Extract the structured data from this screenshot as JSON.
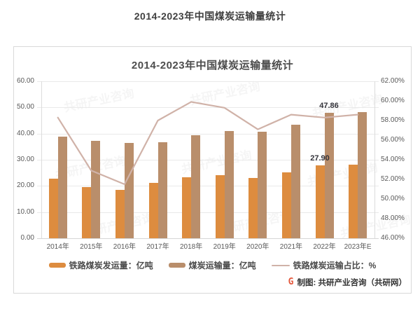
{
  "page": {
    "title": "2014-2023年中国煤炭运输量统计"
  },
  "chart": {
    "title": "2014-2023年中国煤炭运输量统计"
  },
  "chart_data": {
    "type": "combo",
    "categories": [
      "2014年",
      "2015年",
      "2016年",
      "2017年",
      "2018年",
      "2019年",
      "2020年",
      "2021年",
      "2022年",
      "2023年E"
    ],
    "series": [
      {
        "name": "铁路煤炭发运量：亿吨",
        "type": "bar",
        "axis": "left",
        "color": "#DD8C3F",
        "values": [
          22.9,
          19.6,
          18.6,
          21.2,
          23.2,
          24.2,
          23.0,
          25.3,
          27.9,
          28.0
        ]
      },
      {
        "name": "煤炭运输量：亿吨",
        "type": "bar",
        "axis": "left",
        "color": "#B98E6B",
        "values": [
          38.9,
          37.3,
          36.3,
          36.8,
          39.3,
          41.0,
          40.6,
          43.4,
          47.86,
          48.3
        ]
      },
      {
        "name": "铁路煤炭运输占比：%",
        "type": "line",
        "axis": "right",
        "color": "#D0B2A8",
        "values": [
          58.3,
          52.9,
          51.5,
          58.0,
          59.9,
          59.3,
          57.1,
          58.6,
          58.3,
          58.6
        ]
      }
    ],
    "data_labels": [
      {
        "series_index": 1,
        "point_index": 8,
        "text": "47.86"
      },
      {
        "series_index": 0,
        "point_index": 8,
        "text": "27.90"
      }
    ],
    "y_left": {
      "min": 0,
      "max": 60,
      "step": 10,
      "ticks": [
        "0.00",
        "10.00",
        "20.00",
        "30.00",
        "40.00",
        "50.00",
        "60.00"
      ]
    },
    "y_right": {
      "min": 46,
      "max": 62,
      "step": 2,
      "ticks": [
        "46.00%",
        "48.00%",
        "50.00%",
        "52.00%",
        "54.00%",
        "56.00%",
        "58.00%",
        "60.00%",
        "62.00%"
      ]
    },
    "grid": true,
    "legend_position": "bottom"
  },
  "footer": {
    "credit": "制图: 共研产业咨询（共研网）",
    "logo_letter": "G"
  },
  "watermark": {
    "text": "共研产业咨询"
  }
}
